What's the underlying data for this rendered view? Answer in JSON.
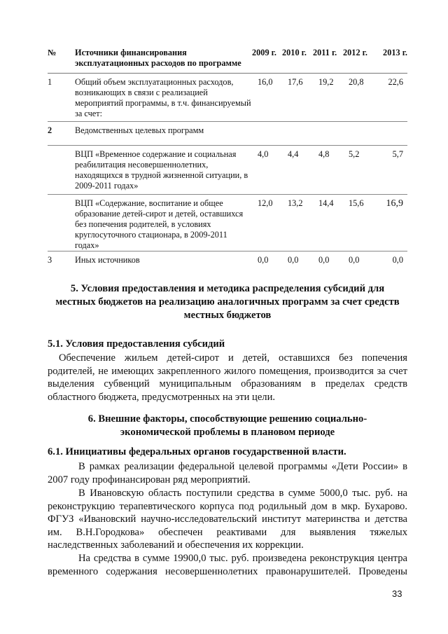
{
  "table": {
    "headers": [
      "№",
      "Источники финансирования эксплуатационных расходов по программе",
      "2009 г.",
      "2010 г.",
      "2011 г.",
      "2012 г.",
      "2013 г."
    ],
    "rows": [
      {
        "num": "1",
        "desc": "Общий объем эксплуатационных расходов, возникающих в связи с реализацией мероприятий программы, в т.ч. финансируемый за счет:",
        "values": [
          "16,0",
          "17,6",
          "19,2",
          "20,8",
          "22,6"
        ]
      },
      {
        "num": "2",
        "desc": "Ведомственных целевых программ",
        "values": [
          "",
          "",
          "",
          "",
          ""
        ]
      },
      {
        "num": "",
        "desc": "ВЦП «Временное содержание и социальная реабилитация несовершеннолетних, находящихся в трудной жизненной ситуации, в 2009-2011 годах»",
        "values": [
          "4,0",
          "4,4",
          "4,8",
          "5,2",
          "5,7"
        ]
      },
      {
        "num": "",
        "desc": "ВЦП «Содержание, воспитание и общее образование детей-сирот и детей, оставшихся без попечения родителей, в условиях круглосуточного стационара, в 2009-2011 годах»",
        "values": [
          "12,0",
          "13,2",
          "14,4",
          "15,6",
          "16,9"
        ]
      },
      {
        "num": "3",
        "desc": "Иных источников",
        "values": [
          "0,0",
          "0,0",
          "0,0",
          "0,0",
          "0,0"
        ]
      }
    ]
  },
  "section5": {
    "heading": "5. Условия предоставления и методика распределения субсидий для местных бюджетов на реализацию аналогичных программ за счет средств местных бюджетов",
    "sub_heading": "5.1. Условия предоставления субсидий",
    "paragraph": "Обеспечение жильем детей-сирот и детей, оставшихся без попечения родителей, не имеющих закрепленного жилого помещения, производится за счет выделения субвенций муниципальным образованиям в пределах средств областного бюджета, предусмотренных на эти цели."
  },
  "section6": {
    "heading": "6. Внешние факторы, способствующие решению социально-экономической проблемы в плановом периоде",
    "sub_heading": "6.1. Инициативы федеральных органов государственной власти.",
    "paragraphs": [
      "В рамках реализации федеральной целевой программы «Дети России» в 2007 году профинансирован ряд мероприятий.",
      "В Ивановскую область поступили средства в сумме 5000,0 тыс. руб. на реконструкцию терапевтического корпуса под родильный дом в мкр. Бухарово. ФГУЗ «Ивановский научно-исследовательский институт материнства и детства им. В.Н.Городкова» обеспечен реактивами для выявления тяжелых наследственных заболеваний и обеспечения их коррекции.",
      "На средства в сумме 19900,0 тыс. руб. произведена реконструкция центра временного содержания несовершеннолетних правонарушителей. Проведены"
    ]
  },
  "page_number": "33"
}
